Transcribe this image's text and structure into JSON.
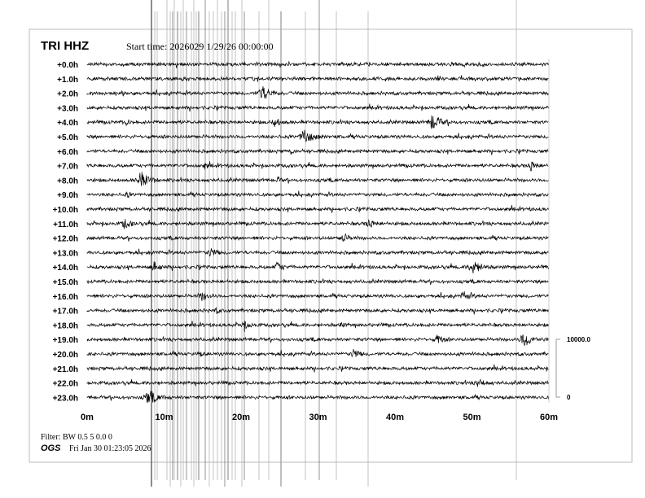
{
  "chart_data": {
    "type": "line",
    "title": "TRI HHZ",
    "start_time_label": "Start time: 2026029  1/29/26 00:00:00",
    "row_labels": [
      "+0.0h",
      "+1.0h",
      "+2.0h",
      "+3.0h",
      "+4.0h",
      "+5.0h",
      "+6.0h",
      "+7.0h",
      "+8.0h",
      "+9.0h",
      "+10.0h",
      "+11.0h",
      "+12.0h",
      "+13.0h",
      "+14.0h",
      "+15.0h",
      "+16.0h",
      "+17.0h",
      "+18.0h",
      "+19.0h",
      "+20.0h",
      "+21.0h",
      "+22.0h",
      "+23.0h"
    ],
    "x_ticks": [
      "0m",
      "10m",
      "20m",
      "30m",
      "40m",
      "50m",
      "60m"
    ],
    "xlim": [
      0,
      60
    ],
    "scale_bar": {
      "top_label": "10000.0",
      "bottom_label": "0"
    },
    "trace_color": "#000000",
    "events": [
      {
        "hour": 2,
        "minute": 22.7,
        "size": 3
      },
      {
        "hour": 4,
        "minute": 5.1,
        "size": 1
      },
      {
        "hour": 4,
        "minute": 24.3,
        "size": 2
      },
      {
        "hour": 4,
        "minute": 44.8,
        "size": 3
      },
      {
        "hour": 5,
        "minute": 28.1,
        "size": 3
      },
      {
        "hour": 6,
        "minute": 26.5,
        "size": 1
      },
      {
        "hour": 7,
        "minute": 15.3,
        "size": 1
      },
      {
        "hour": 7,
        "minute": 57.6,
        "size": 2
      },
      {
        "hour": 8,
        "minute": 6.9,
        "size": 3
      },
      {
        "hour": 8,
        "minute": 24.7,
        "size": 1
      },
      {
        "hour": 9,
        "minute": 5.1,
        "size": 1
      },
      {
        "hour": 11,
        "minute": 4.8,
        "size": 2
      },
      {
        "hour": 11,
        "minute": 36.5,
        "size": 2
      },
      {
        "hour": 12,
        "minute": 33.2,
        "size": 2
      },
      {
        "hour": 13,
        "minute": 16.0,
        "size": 2
      },
      {
        "hour": 14,
        "minute": 8.6,
        "size": 2
      },
      {
        "hour": 14,
        "minute": 24.7,
        "size": 2
      },
      {
        "hour": 14,
        "minute": 50.0,
        "size": 3
      },
      {
        "hour": 16,
        "minute": 14.8,
        "size": 2
      },
      {
        "hour": 16,
        "minute": 48.9,
        "size": 2
      },
      {
        "hour": 17,
        "minute": 16.7,
        "size": 1
      },
      {
        "hour": 18,
        "minute": 20.4,
        "size": 2
      },
      {
        "hour": 18,
        "minute": 32.9,
        "size": 1
      },
      {
        "hour": 19,
        "minute": 45.5,
        "size": 2
      },
      {
        "hour": 19,
        "minute": 56.7,
        "size": 3
      },
      {
        "hour": 20,
        "minute": 14.5,
        "size": 1
      },
      {
        "hour": 20,
        "minute": 34.6,
        "size": 2
      },
      {
        "hour": 22,
        "minute": 50.8,
        "size": 2
      },
      {
        "hour": 23,
        "minute": 7.9,
        "size": 3
      }
    ]
  },
  "footer": {
    "filter": "Filter: BW 0.5 5 0.0 0",
    "org": "OGS",
    "timestamp": "Fri Jan 30 01:23:05 2026"
  }
}
